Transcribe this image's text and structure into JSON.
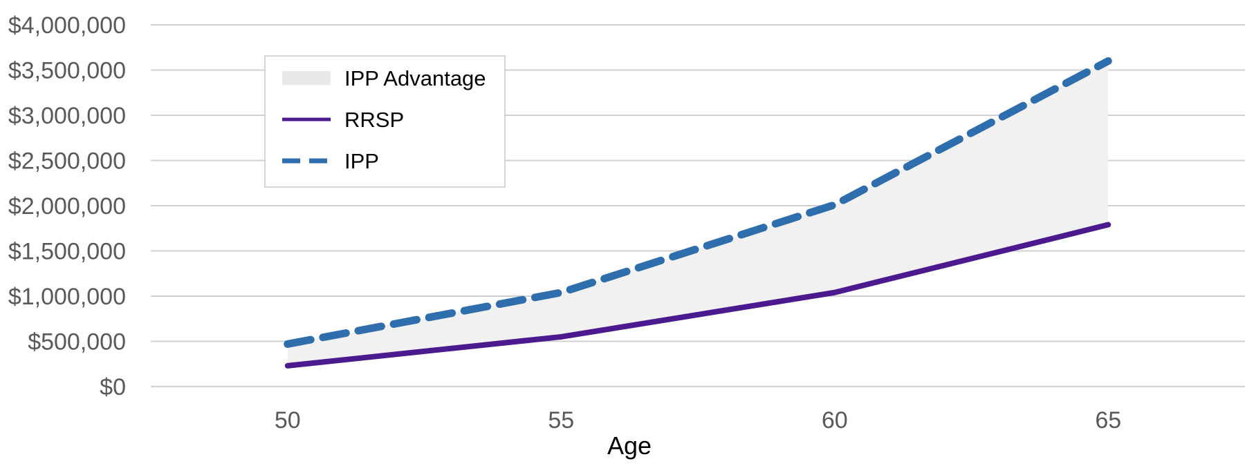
{
  "chart_data": {
    "type": "line",
    "xlabel": "Age",
    "ylabel": "",
    "x": [
      50,
      55,
      60,
      65
    ],
    "xlim": [
      47.5,
      67.5
    ],
    "ylim": [
      0,
      4000000
    ],
    "y_tick_values": [
      0,
      500000,
      1000000,
      1500000,
      2000000,
      2500000,
      3000000,
      3500000,
      4000000
    ],
    "y_tick_labels": [
      "$0",
      "$500,000",
      "$1,000,000",
      "$1,500,000",
      "$2,000,000",
      "$2,500,000",
      "$3,000,000",
      "$3,500,000",
      "$4,000,000"
    ],
    "x_tick_labels": [
      "50",
      "55",
      "60",
      "65"
    ],
    "grid": "horizontal",
    "legend_placement": "upper-left",
    "series": [
      {
        "name": "IPP Advantage",
        "kind": "area",
        "color": "#f1f1f1",
        "lower": "RRSP",
        "upper": "IPP"
      },
      {
        "name": "RRSP",
        "kind": "line",
        "style": "solid",
        "color": "#4b1a8f",
        "values": [
          230000,
          550000,
          1040000,
          1790000
        ]
      },
      {
        "name": "IPP",
        "kind": "line",
        "style": "dashed",
        "color": "#2e6ead",
        "values": [
          470000,
          1040000,
          2010000,
          3600000
        ]
      }
    ]
  }
}
